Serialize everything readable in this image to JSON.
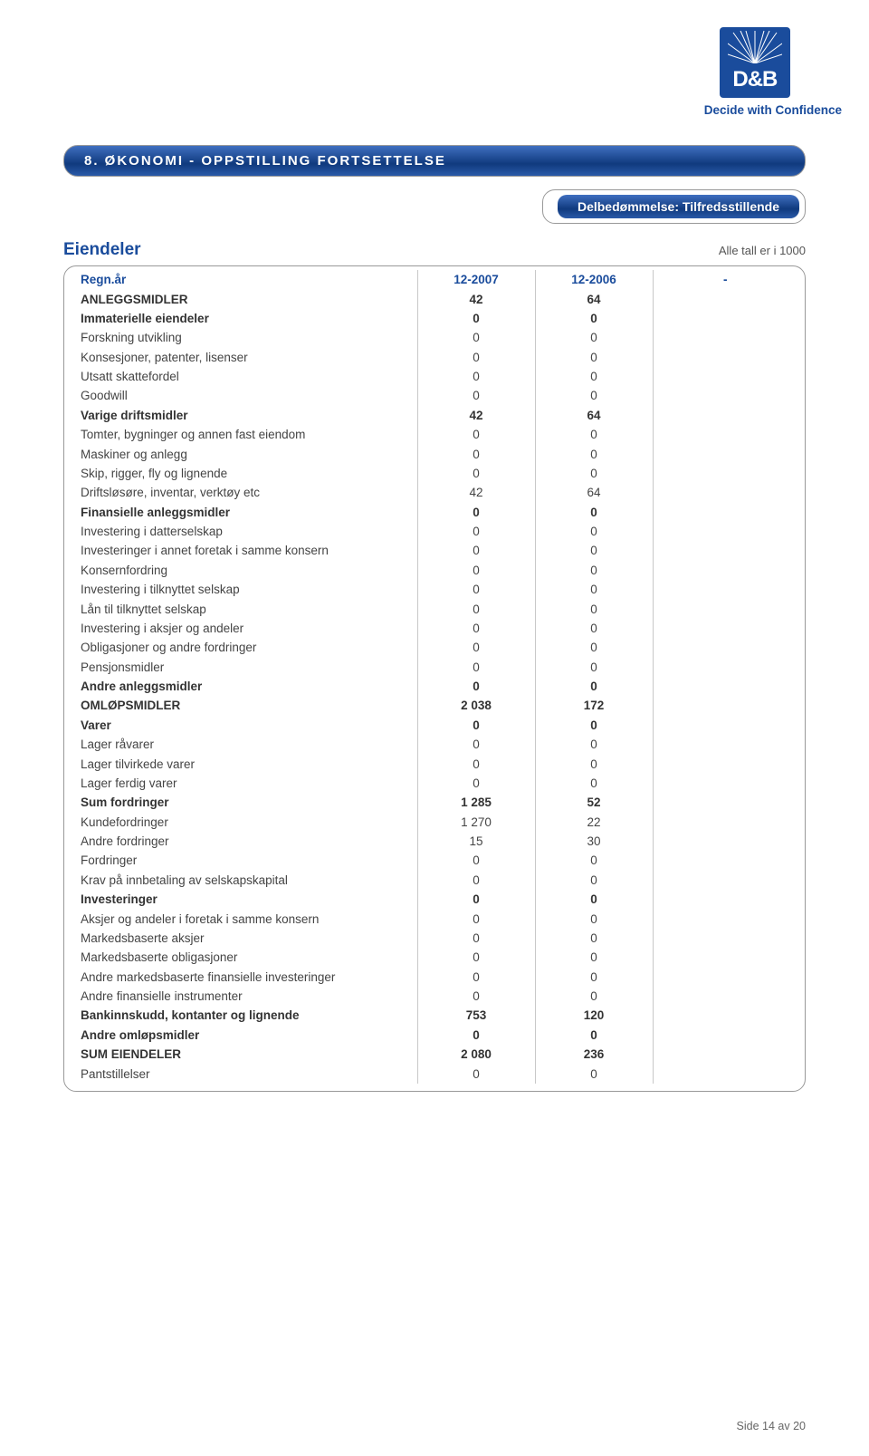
{
  "logo": {
    "text": "D&B",
    "tagline": "Decide with Confidence"
  },
  "section_title": "8. ØKONOMI - OPPSTILLING FORTSETTELSE",
  "sub_assessment": "Delbedømmelse: Tilfredsstillende",
  "assets_heading": "Eiendeler",
  "unit_note": "Alle tall er i 1000",
  "columns": {
    "c0": "Regn.år",
    "c1": "12-2007",
    "c2": "12-2006",
    "c3": "-"
  },
  "rows": [
    {
      "label": "ANLEGGSMIDLER",
      "v1": "42",
      "v2": "64",
      "bold": true
    },
    {
      "label": "Immaterielle eiendeler",
      "v1": "0",
      "v2": "0",
      "bold": true
    },
    {
      "label": "Forskning utvikling",
      "v1": "0",
      "v2": "0",
      "bold": false
    },
    {
      "label": "Konsesjoner, patenter, lisenser",
      "v1": "0",
      "v2": "0",
      "bold": false
    },
    {
      "label": "Utsatt skattefordel",
      "v1": "0",
      "v2": "0",
      "bold": false
    },
    {
      "label": "Goodwill",
      "v1": "0",
      "v2": "0",
      "bold": false
    },
    {
      "label": "Varige driftsmidler",
      "v1": "42",
      "v2": "64",
      "bold": true
    },
    {
      "label": "Tomter, bygninger og annen fast eiendom",
      "v1": "0",
      "v2": "0",
      "bold": false
    },
    {
      "label": "Maskiner og anlegg",
      "v1": "0",
      "v2": "0",
      "bold": false
    },
    {
      "label": "Skip, rigger, fly og lignende",
      "v1": "0",
      "v2": "0",
      "bold": false
    },
    {
      "label": "Driftsløsøre, inventar, verktøy etc",
      "v1": "42",
      "v2": "64",
      "bold": false
    },
    {
      "label": "Finansielle anleggsmidler",
      "v1": "0",
      "v2": "0",
      "bold": true
    },
    {
      "label": "Investering i datterselskap",
      "v1": "0",
      "v2": "0",
      "bold": false
    },
    {
      "label": "Investeringer i annet foretak i samme konsern",
      "v1": "0",
      "v2": "0",
      "bold": false
    },
    {
      "label": "Konsernfordring",
      "v1": "0",
      "v2": "0",
      "bold": false
    },
    {
      "label": "Investering i tilknyttet selskap",
      "v1": "0",
      "v2": "0",
      "bold": false
    },
    {
      "label": "Lån til tilknyttet selskap",
      "v1": "0",
      "v2": "0",
      "bold": false
    },
    {
      "label": "Investering i aksjer og andeler",
      "v1": "0",
      "v2": "0",
      "bold": false
    },
    {
      "label": "Obligasjoner og andre fordringer",
      "v1": "0",
      "v2": "0",
      "bold": false
    },
    {
      "label": "Pensjonsmidler",
      "v1": "0",
      "v2": "0",
      "bold": false
    },
    {
      "label": "Andre anleggsmidler",
      "v1": "0",
      "v2": "0",
      "bold": true
    },
    {
      "label": "OMLØPSMIDLER",
      "v1": "2 038",
      "v2": "172",
      "bold": true
    },
    {
      "label": "Varer",
      "v1": "0",
      "v2": "0",
      "bold": true
    },
    {
      "label": "Lager råvarer",
      "v1": "0",
      "v2": "0",
      "bold": false
    },
    {
      "label": "Lager tilvirkede varer",
      "v1": "0",
      "v2": "0",
      "bold": false
    },
    {
      "label": "Lager ferdig varer",
      "v1": "0",
      "v2": "0",
      "bold": false
    },
    {
      "label": "Sum fordringer",
      "v1": "1 285",
      "v2": "52",
      "bold": true
    },
    {
      "label": "Kundefordringer",
      "v1": "1 270",
      "v2": "22",
      "bold": false
    },
    {
      "label": "Andre fordringer",
      "v1": "15",
      "v2": "30",
      "bold": false
    },
    {
      "label": "Fordringer",
      "v1": "0",
      "v2": "0",
      "bold": false
    },
    {
      "label": "Krav på innbetaling av selskapskapital",
      "v1": "0",
      "v2": "0",
      "bold": false
    },
    {
      "label": "Investeringer",
      "v1": "0",
      "v2": "0",
      "bold": true
    },
    {
      "label": "Aksjer og andeler i foretak i samme konsern",
      "v1": "0",
      "v2": "0",
      "bold": false
    },
    {
      "label": "Markedsbaserte aksjer",
      "v1": "0",
      "v2": "0",
      "bold": false
    },
    {
      "label": "Markedsbaserte obligasjoner",
      "v1": "0",
      "v2": "0",
      "bold": false
    },
    {
      "label": "Andre markedsbaserte finansielle investeringer",
      "v1": "0",
      "v2": "0",
      "bold": false
    },
    {
      "label": "Andre finansielle instrumenter",
      "v1": "0",
      "v2": "0",
      "bold": false
    },
    {
      "label": "Bankinnskudd, kontanter og lignende",
      "v1": "753",
      "v2": "120",
      "bold": true
    },
    {
      "label": "Andre omløpsmidler",
      "v1": "0",
      "v2": "0",
      "bold": true
    },
    {
      "label": "SUM EIENDELER",
      "v1": "2 080",
      "v2": "236",
      "bold": true
    },
    {
      "label": "Pantstillelser",
      "v1": "0",
      "v2": "0",
      "bold": false
    }
  ],
  "footer": "Side 14 av 20",
  "colors": {
    "brand_blue": "#1a4c9c",
    "bar_grad_top": "#3f6fc0",
    "bar_grad_bottom": "#103a7e",
    "border_grey": "#999999",
    "cell_border": "#c8c8c8",
    "text": "#444444"
  }
}
